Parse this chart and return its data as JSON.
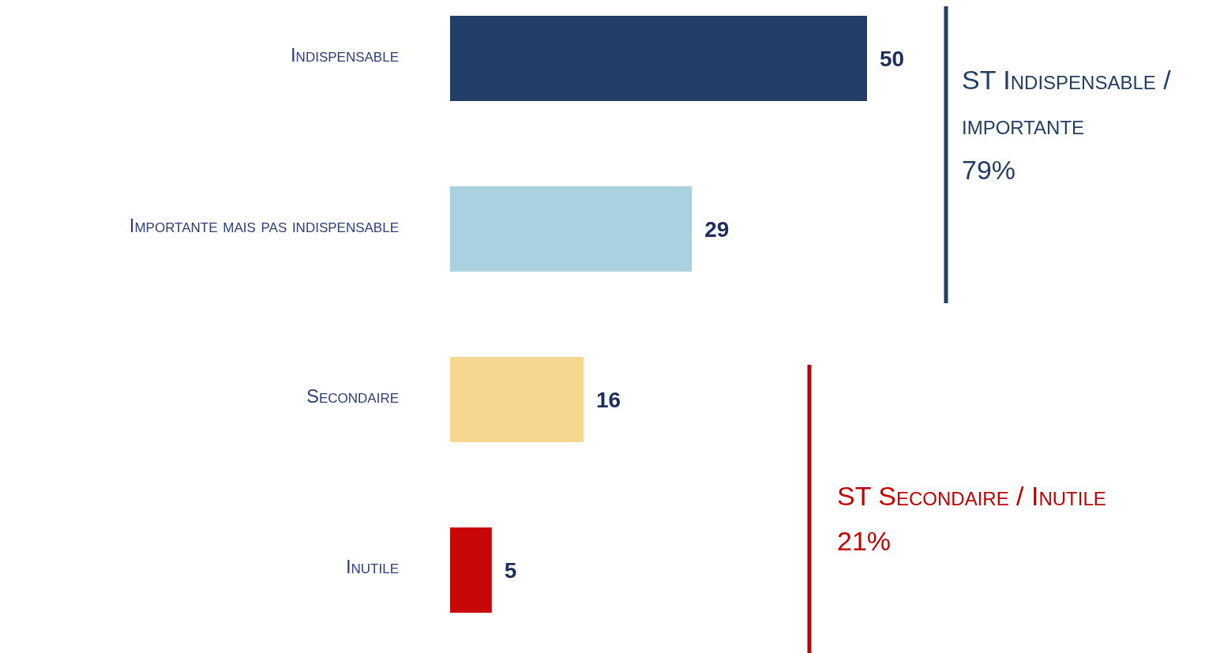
{
  "chart_data": {
    "type": "bar",
    "orientation": "horizontal",
    "categories": [
      "Indispensable",
      "Importante mais pas indispensable",
      "Secondaire",
      "Inutile"
    ],
    "values": [
      50,
      29,
      16,
      5
    ],
    "colors": [
      "#233e66",
      "#aad1e0",
      "#f5d78f",
      "#c80808"
    ],
    "data_labels": true,
    "annotations": [
      "ST Indispensable / importante\n79%",
      "ST Secondaire / Inutile\n21%"
    ]
  }
}
